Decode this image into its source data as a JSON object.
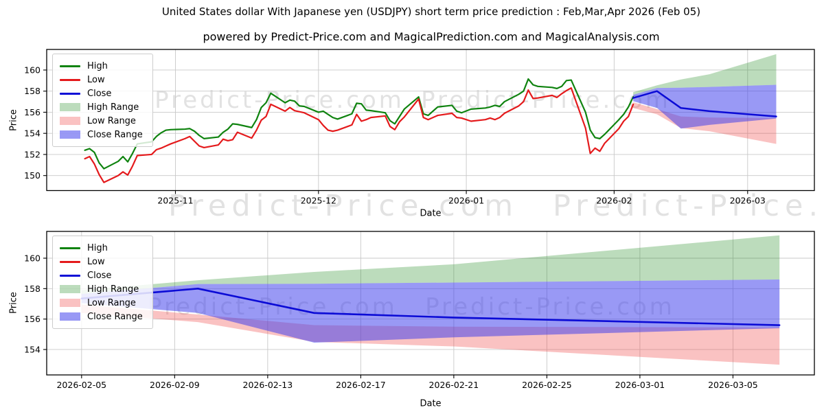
{
  "page": {
    "title": "United States dollar With Japanese yen (USDJPY) short term price prediction : Feb,Mar,Apr 2026 (Feb 05)",
    "subtitle": "powered by Predict-Price.com and MagicalPrediction.com and MagicalAnalysis.com",
    "watermark": "Predict-Price.com"
  },
  "colors": {
    "high": "#0f830f",
    "low": "#e41a1c",
    "close": "#0b0bd6",
    "high_range": "rgba(34,139,34,0.30)",
    "low_range": "rgba(240,70,70,0.33)",
    "close_range": "rgba(60,60,235,0.52)",
    "grid": "#c8c8c8",
    "frame": "#000000",
    "watermark": "#e2e2e2"
  },
  "chart_data": [
    {
      "type": "line",
      "name": "usdjpy-history-and-forecast",
      "xlabel": "Date",
      "ylabel": "Price",
      "grid": true,
      "legend_position": "upper-left",
      "x_domain": [
        "2025-10-05T00:00:00Z",
        "2026-03-15T00:00:00Z"
      ],
      "y_domain": [
        148.58,
        161.95
      ],
      "y_ticks": [
        150,
        152,
        154,
        156,
        158,
        160
      ],
      "x_ticks": [
        {
          "date": "2025-11-01",
          "label": "2025-11"
        },
        {
          "date": "2025-12-01",
          "label": "2025-12"
        },
        {
          "date": "2026-01-01",
          "label": "2026-01"
        },
        {
          "date": "2026-02-01",
          "label": "2026-02"
        },
        {
          "date": "2026-03-01",
          "label": "2026-03"
        }
      ],
      "legend": [
        {
          "label": "High",
          "kind": "line",
          "color_key": "high"
        },
        {
          "label": "Low",
          "kind": "line",
          "color_key": "low"
        },
        {
          "label": "Close",
          "kind": "line",
          "color_key": "close"
        },
        {
          "label": "High Range",
          "kind": "patch",
          "color_key": "high_range"
        },
        {
          "label": "Low Range",
          "kind": "patch",
          "color_key": "low_range"
        },
        {
          "label": "Close Range",
          "kind": "patch",
          "color_key": "close_range"
        }
      ],
      "bands": [
        {
          "name": "High Range",
          "color_key": "high_range",
          "dates": [
            "2026-02-05",
            "2026-02-10",
            "2026-02-15",
            "2026-02-21",
            "2026-03-07"
          ],
          "upper": [
            157.9,
            158.55,
            159.1,
            159.6,
            161.5
          ],
          "lower": [
            157.65,
            158.3,
            158.32,
            158.4,
            158.6
          ]
        },
        {
          "name": "Low Range",
          "color_key": "low_range",
          "dates": [
            "2026-02-05",
            "2026-02-10",
            "2026-02-15",
            "2026-02-21",
            "2026-03-07"
          ],
          "upper": [
            156.95,
            156.3,
            155.6,
            155.5,
            155.45
          ],
          "lower": [
            156.4,
            155.8,
            154.5,
            154.2,
            153.0
          ]
        },
        {
          "name": "Close Range",
          "color_key": "close_range",
          "dates": [
            "2026-02-05",
            "2026-02-10",
            "2026-02-15",
            "2026-02-21",
            "2026-03-07"
          ],
          "upper": [
            157.65,
            158.3,
            158.32,
            158.4,
            158.6
          ],
          "lower": [
            157.05,
            156.4,
            154.45,
            154.8,
            155.4
          ]
        }
      ],
      "lines": [
        {
          "name": "High",
          "color_key": "high",
          "width": 2.2,
          "dates": [
            "2025-10-13",
            "2025-10-14",
            "2025-10-15",
            "2025-10-16",
            "2025-10-17",
            "2025-10-20",
            "2025-10-21",
            "2025-10-22",
            "2025-10-23",
            "2025-10-24",
            "2025-10-27",
            "2025-10-28",
            "2025-10-29",
            "2025-10-30",
            "2025-10-31",
            "2025-11-03",
            "2025-11-04",
            "2025-11-05",
            "2025-11-06",
            "2025-11-07",
            "2025-11-10",
            "2025-11-11",
            "2025-11-12",
            "2025-11-13",
            "2025-11-14",
            "2025-11-17",
            "2025-11-18",
            "2025-11-19",
            "2025-11-20",
            "2025-11-21",
            "2025-11-24",
            "2025-11-25",
            "2025-11-26",
            "2025-11-27",
            "2025-11-28",
            "2025-12-01",
            "2025-12-02",
            "2025-12-03",
            "2025-12-04",
            "2025-12-05",
            "2025-12-08",
            "2025-12-09",
            "2025-12-10",
            "2025-12-11",
            "2025-12-12",
            "2025-12-15",
            "2025-12-16",
            "2025-12-17",
            "2025-12-18",
            "2025-12-19",
            "2025-12-22",
            "2025-12-23",
            "2025-12-24",
            "2025-12-26",
            "2025-12-29",
            "2025-12-30",
            "2025-12-31",
            "2026-01-02",
            "2026-01-05",
            "2026-01-06",
            "2026-01-07",
            "2026-01-08",
            "2026-01-09",
            "2026-01-12",
            "2026-01-13",
            "2026-01-14",
            "2026-01-15",
            "2026-01-16",
            "2026-01-19",
            "2026-01-20",
            "2026-01-21",
            "2026-01-22",
            "2026-01-23",
            "2026-01-26",
            "2026-01-27",
            "2026-01-28",
            "2026-01-29",
            "2026-01-30",
            "2026-02-02",
            "2026-02-03",
            "2026-02-04",
            "2026-02-05"
          ],
          "values": [
            152.4,
            152.55,
            152.2,
            151.2,
            150.65,
            151.35,
            151.8,
            151.3,
            152.1,
            153.0,
            153.2,
            153.7,
            154.05,
            154.3,
            154.35,
            154.4,
            154.45,
            154.2,
            153.8,
            153.5,
            153.65,
            154.1,
            154.4,
            154.9,
            154.85,
            154.55,
            155.3,
            156.45,
            156.9,
            157.8,
            156.9,
            157.15,
            157.05,
            156.6,
            156.55,
            156.0,
            156.1,
            155.8,
            155.5,
            155.35,
            155.85,
            156.85,
            156.8,
            156.2,
            156.15,
            155.95,
            155.2,
            154.9,
            155.6,
            156.3,
            157.45,
            155.85,
            155.7,
            156.5,
            156.65,
            156.1,
            155.95,
            156.3,
            156.4,
            156.5,
            156.65,
            156.55,
            157.0,
            157.7,
            158.0,
            159.15,
            158.6,
            158.45,
            158.35,
            158.25,
            158.45,
            159.0,
            159.05,
            156.0,
            154.3,
            153.6,
            153.5,
            153.9,
            155.3,
            155.8,
            156.5,
            157.45
          ]
        },
        {
          "name": "Low",
          "color_key": "low",
          "width": 2.2,
          "dates": [
            "2025-10-13",
            "2025-10-14",
            "2025-10-15",
            "2025-10-16",
            "2025-10-17",
            "2025-10-20",
            "2025-10-21",
            "2025-10-22",
            "2025-10-23",
            "2025-10-24",
            "2025-10-27",
            "2025-10-28",
            "2025-10-29",
            "2025-10-30",
            "2025-10-31",
            "2025-11-03",
            "2025-11-04",
            "2025-11-05",
            "2025-11-06",
            "2025-11-07",
            "2025-11-10",
            "2025-11-11",
            "2025-11-12",
            "2025-11-13",
            "2025-11-14",
            "2025-11-17",
            "2025-11-18",
            "2025-11-19",
            "2025-11-20",
            "2025-11-21",
            "2025-11-24",
            "2025-11-25",
            "2025-11-26",
            "2025-11-27",
            "2025-11-28",
            "2025-12-01",
            "2025-12-02",
            "2025-12-03",
            "2025-12-04",
            "2025-12-05",
            "2025-12-08",
            "2025-12-09",
            "2025-12-10",
            "2025-12-11",
            "2025-12-12",
            "2025-12-15",
            "2025-12-16",
            "2025-12-17",
            "2025-12-18",
            "2025-12-19",
            "2025-12-22",
            "2025-12-23",
            "2025-12-24",
            "2025-12-26",
            "2025-12-29",
            "2025-12-30",
            "2025-12-31",
            "2026-01-02",
            "2026-01-05",
            "2026-01-06",
            "2026-01-07",
            "2026-01-08",
            "2026-01-09",
            "2026-01-12",
            "2026-01-13",
            "2026-01-14",
            "2026-01-15",
            "2026-01-16",
            "2026-01-19",
            "2026-01-20",
            "2026-01-21",
            "2026-01-22",
            "2026-01-23",
            "2026-01-26",
            "2026-01-27",
            "2026-01-28",
            "2026-01-29",
            "2026-01-30",
            "2026-02-02",
            "2026-02-03",
            "2026-02-04",
            "2026-02-05"
          ],
          "values": [
            151.6,
            151.8,
            151.1,
            150.1,
            149.35,
            150.0,
            150.35,
            150.05,
            150.9,
            151.9,
            152.0,
            152.45,
            152.6,
            152.8,
            153.0,
            153.5,
            153.7,
            153.25,
            152.8,
            152.65,
            152.9,
            153.45,
            153.3,
            153.4,
            154.1,
            153.55,
            154.3,
            155.25,
            155.6,
            156.75,
            156.1,
            156.45,
            156.15,
            156.05,
            155.95,
            155.3,
            154.75,
            154.3,
            154.2,
            154.3,
            154.8,
            155.8,
            155.15,
            155.3,
            155.5,
            155.65,
            154.65,
            154.35,
            155.1,
            155.55,
            157.25,
            155.5,
            155.3,
            155.7,
            155.9,
            155.5,
            155.45,
            155.15,
            155.3,
            155.45,
            155.3,
            155.5,
            155.9,
            156.6,
            157.0,
            158.1,
            157.3,
            157.35,
            157.6,
            157.4,
            157.75,
            158.05,
            158.3,
            154.5,
            152.1,
            152.6,
            152.3,
            153.05,
            154.45,
            155.15,
            155.6,
            156.75
          ]
        },
        {
          "name": "Close",
          "color_key": "close",
          "width": 2.5,
          "dates": [
            "2026-02-05",
            "2026-02-10",
            "2026-02-15",
            "2026-02-21",
            "2026-03-07"
          ],
          "values": [
            157.35,
            158.0,
            156.4,
            156.1,
            155.6
          ]
        }
      ]
    },
    {
      "type": "line",
      "name": "usdjpy-forecast-detail",
      "xlabel": "Date",
      "ylabel": "Price",
      "grid": true,
      "legend_position": "upper-left",
      "x_domain": [
        "2026-02-03T12:00:00Z",
        "2026-03-08T12:00:00Z"
      ],
      "y_domain": [
        152.33,
        161.76
      ],
      "y_ticks": [
        154,
        156,
        158,
        160
      ],
      "x_ticks": [
        {
          "date": "2026-02-05",
          "label": "2026-02-05"
        },
        {
          "date": "2026-02-09",
          "label": "2026-02-09"
        },
        {
          "date": "2026-02-13",
          "label": "2026-02-13"
        },
        {
          "date": "2026-02-17",
          "label": "2026-02-17"
        },
        {
          "date": "2026-02-21",
          "label": "2026-02-21"
        },
        {
          "date": "2026-02-25",
          "label": "2026-02-25"
        },
        {
          "date": "2026-03-01",
          "label": "2026-03-01"
        },
        {
          "date": "2026-03-05",
          "label": "2026-03-05"
        }
      ],
      "legend": [
        {
          "label": "High",
          "kind": "line",
          "color_key": "high"
        },
        {
          "label": "Low",
          "kind": "line",
          "color_key": "low"
        },
        {
          "label": "Close",
          "kind": "line",
          "color_key": "close"
        },
        {
          "label": "High Range",
          "kind": "patch",
          "color_key": "high_range"
        },
        {
          "label": "Low Range",
          "kind": "patch",
          "color_key": "low_range"
        },
        {
          "label": "Close Range",
          "kind": "patch",
          "color_key": "close_range"
        }
      ],
      "bands": [
        {
          "name": "High Range",
          "color_key": "high_range",
          "dates": [
            "2026-02-05",
            "2026-02-10",
            "2026-02-15",
            "2026-02-21",
            "2026-03-07"
          ],
          "upper": [
            157.9,
            158.55,
            159.1,
            159.6,
            161.5
          ],
          "lower": [
            157.65,
            158.3,
            158.32,
            158.4,
            158.6
          ]
        },
        {
          "name": "Low Range",
          "color_key": "low_range",
          "dates": [
            "2026-02-05",
            "2026-02-10",
            "2026-02-15",
            "2026-02-21",
            "2026-03-07"
          ],
          "upper": [
            156.95,
            156.3,
            155.6,
            155.5,
            155.45
          ],
          "lower": [
            156.4,
            155.8,
            154.5,
            154.2,
            153.0
          ]
        },
        {
          "name": "Close Range",
          "color_key": "close_range",
          "dates": [
            "2026-02-05",
            "2026-02-10",
            "2026-02-15",
            "2026-02-21",
            "2026-03-07"
          ],
          "upper": [
            157.65,
            158.3,
            158.32,
            158.4,
            158.6
          ],
          "lower": [
            157.05,
            156.4,
            154.45,
            154.8,
            155.4
          ]
        }
      ],
      "lines": [
        {
          "name": "Close",
          "color_key": "close",
          "width": 2.6,
          "dates": [
            "2026-02-05",
            "2026-02-10",
            "2026-02-15",
            "2026-02-21",
            "2026-03-07"
          ],
          "values": [
            157.35,
            158.0,
            156.4,
            156.1,
            155.6
          ]
        }
      ]
    }
  ]
}
